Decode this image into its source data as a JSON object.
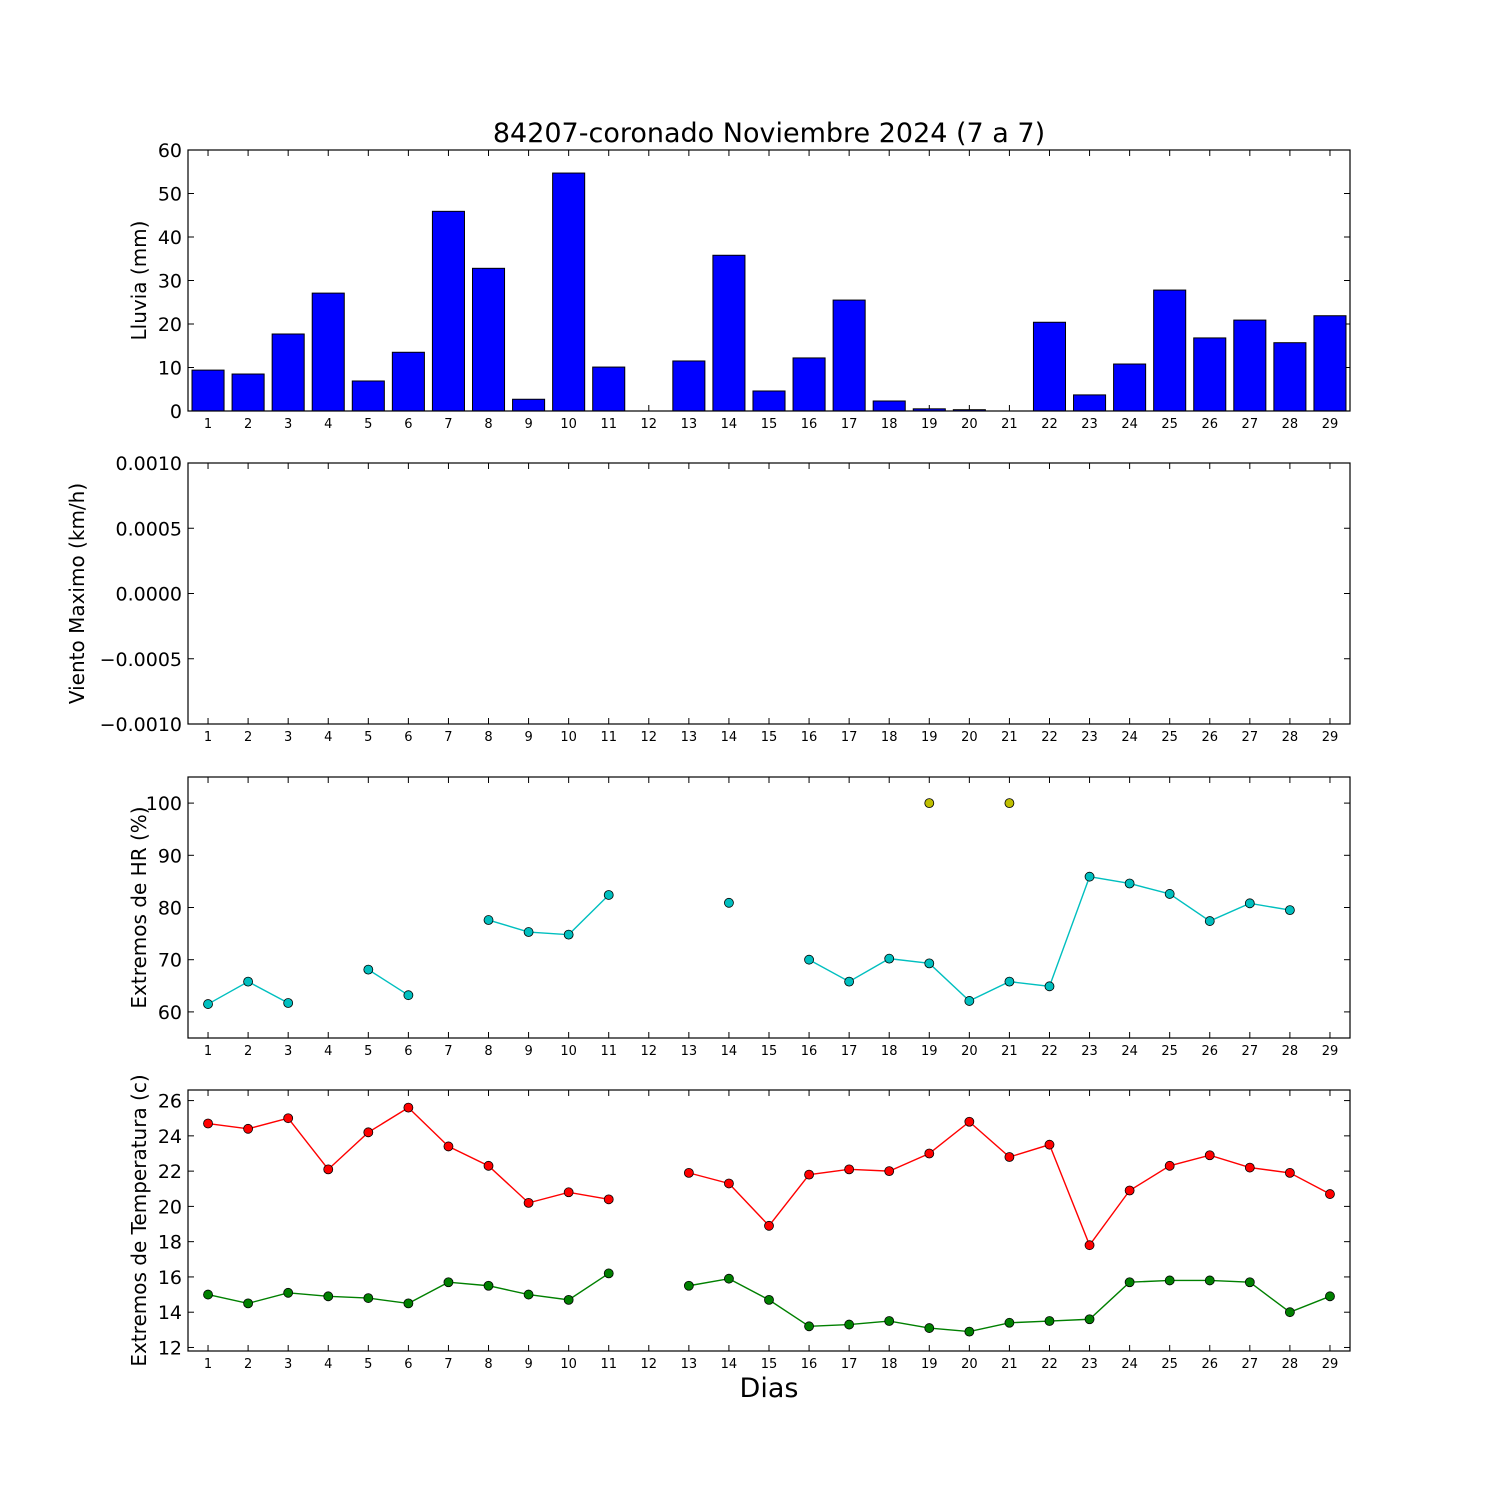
{
  "chart_data": [
    {
      "type": "bar",
      "title": "84207-coronado Noviembre 2024  (7 a 7)",
      "ylabel": "Lluvia (mm)",
      "ylim": [
        0,
        60
      ],
      "yticks": [
        "0",
        "10",
        "20",
        "30",
        "40",
        "50",
        "60"
      ],
      "categories": [
        "1",
        "2",
        "3",
        "4",
        "5",
        "6",
        "7",
        "8",
        "9",
        "10",
        "11",
        "12",
        "13",
        "14",
        "15",
        "16",
        "17",
        "18",
        "19",
        "20",
        "21",
        "22",
        "23",
        "24",
        "25",
        "26",
        "27",
        "28",
        "29"
      ],
      "values": [
        9.4,
        8.5,
        17.7,
        27.1,
        6.9,
        13.5,
        45.9,
        32.8,
        2.7,
        54.7,
        10.1,
        0,
        11.5,
        35.8,
        4.6,
        12.2,
        25.5,
        2.3,
        0.5,
        0.3,
        0,
        20.4,
        3.7,
        10.8,
        27.8,
        16.8,
        20.9,
        15.7,
        21.9
      ],
      "color": "#0000ff"
    },
    {
      "type": "line",
      "ylabel": "Viento Maximo (km/h)",
      "ylim": [
        -0.001,
        0.001
      ],
      "yticks": [
        "−0.0010",
        "−0.0005",
        "0.0000",
        "0.0005",
        "0.0010"
      ],
      "categories": [
        "1",
        "2",
        "3",
        "4",
        "5",
        "6",
        "7",
        "8",
        "9",
        "10",
        "11",
        "12",
        "13",
        "14",
        "15",
        "16",
        "17",
        "18",
        "19",
        "20",
        "21",
        "22",
        "23",
        "24",
        "25",
        "26",
        "27",
        "28",
        "29"
      ],
      "series": []
    },
    {
      "type": "line",
      "ylabel": "Extremos de HR (%)",
      "ylim": [
        55,
        105
      ],
      "yticks": [
        "60",
        "70",
        "80",
        "90",
        "100"
      ],
      "categories": [
        "1",
        "2",
        "3",
        "4",
        "5",
        "6",
        "7",
        "8",
        "9",
        "10",
        "11",
        "12",
        "13",
        "14",
        "15",
        "16",
        "17",
        "18",
        "19",
        "20",
        "21",
        "22",
        "23",
        "24",
        "25",
        "26",
        "27",
        "28",
        "29"
      ],
      "series": [
        {
          "color": "#bfbf00",
          "values": [
            null,
            null,
            null,
            null,
            null,
            null,
            null,
            null,
            null,
            null,
            null,
            null,
            null,
            null,
            null,
            null,
            null,
            null,
            100,
            null,
            100,
            null,
            null,
            null,
            null,
            null,
            null,
            null,
            null
          ]
        },
        {
          "color": "#00bfbf",
          "values": [
            61.5,
            65.8,
            61.7,
            null,
            68.1,
            63.2,
            null,
            77.6,
            75.3,
            74.8,
            82.4,
            null,
            null,
            80.9,
            null,
            70.0,
            65.8,
            70.2,
            69.3,
            62.1,
            65.8,
            64.9,
            85.9,
            84.6,
            82.6,
            77.4,
            80.8,
            79.5,
            null
          ]
        }
      ]
    },
    {
      "type": "line",
      "ylabel": "Extremos de Temperatura (c)",
      "xlabel": "Dias",
      "ylim": [
        11.8,
        26.6
      ],
      "yticks": [
        "12",
        "14",
        "16",
        "18",
        "20",
        "22",
        "24",
        "26"
      ],
      "categories": [
        "1",
        "2",
        "3",
        "4",
        "5",
        "6",
        "7",
        "8",
        "9",
        "10",
        "11",
        "12",
        "13",
        "14",
        "15",
        "16",
        "17",
        "18",
        "19",
        "20",
        "21",
        "22",
        "23",
        "24",
        "25",
        "26",
        "27",
        "28",
        "29"
      ],
      "series": [
        {
          "color": "#ff0000",
          "values": [
            24.7,
            24.4,
            25.0,
            22.1,
            24.2,
            25.6,
            23.4,
            22.3,
            20.2,
            20.8,
            20.4,
            null,
            21.9,
            21.3,
            18.9,
            21.8,
            22.1,
            22.0,
            23.0,
            24.8,
            22.8,
            23.5,
            17.8,
            20.9,
            22.3,
            22.9,
            22.2,
            21.9,
            20.7
          ]
        },
        {
          "color": "#008000",
          "values": [
            15.0,
            14.5,
            15.1,
            14.9,
            14.8,
            14.5,
            15.7,
            15.5,
            15.0,
            14.7,
            16.2,
            null,
            15.5,
            15.9,
            14.7,
            13.2,
            13.3,
            13.5,
            13.1,
            12.9,
            13.4,
            13.5,
            13.6,
            15.7,
            15.8,
            15.8,
            15.7,
            14.0,
            14.9
          ]
        }
      ]
    }
  ]
}
